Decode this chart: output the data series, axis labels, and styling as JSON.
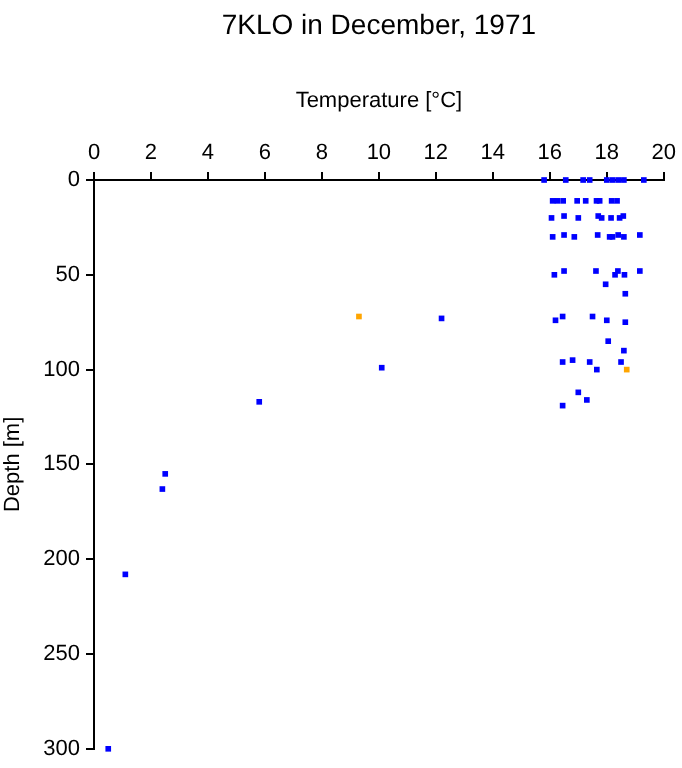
{
  "chart_data": {
    "type": "scatter",
    "title": "7KLO in December, 1971",
    "xlabel": "Temperature [°C]",
    "ylabel": "Depth [m]",
    "xlim": [
      0,
      20
    ],
    "xticks": [
      0,
      2,
      4,
      6,
      8,
      10,
      12,
      14,
      16,
      18,
      20
    ],
    "ylim": [
      300,
      0
    ],
    "yticks": [
      0,
      50,
      100,
      150,
      200,
      250,
      300
    ],
    "grid": false,
    "legend": false,
    "marker": "square",
    "series": [
      {
        "color": "#0000ff",
        "x": [
          0.5,
          1.1,
          2.4,
          2.5,
          5.8,
          10.1,
          12.2,
          16.2,
          16.45,
          17.5,
          18.0,
          18.65,
          18.05,
          18.6,
          18.5,
          16.45,
          16.8,
          17.4,
          17.65,
          17.0,
          17.3,
          16.45,
          15.8,
          16.56,
          17.17,
          17.4,
          18.0,
          18.2,
          18.4,
          18.6,
          19.3,
          16.1,
          16.27,
          16.47,
          16.96,
          17.26,
          17.64,
          17.75,
          18.17,
          18.36,
          16.06,
          16.5,
          17.0,
          17.7,
          17.82,
          18.15,
          18.45,
          18.58,
          16.1,
          16.5,
          16.86,
          17.68,
          18.1,
          18.2,
          18.4,
          18.6,
          19.16,
          16.16,
          16.5,
          17.62,
          18.29,
          18.39,
          18.62,
          19.16,
          17.96,
          18.65
        ],
        "values": [
          300,
          208,
          163,
          155,
          117,
          99,
          73,
          74,
          72,
          72,
          74,
          75,
          85,
          90,
          96,
          96,
          95,
          96,
          100,
          112,
          116,
          119,
          0,
          0,
          0,
          0,
          0,
          0,
          0,
          0,
          0,
          11,
          11,
          11,
          11,
          11,
          11,
          11,
          11,
          11,
          20,
          19,
          20,
          19,
          20,
          20,
          20,
          19,
          30,
          29,
          30,
          29,
          30,
          30,
          29,
          30,
          29,
          50,
          48,
          48,
          50,
          48,
          50,
          48,
          55,
          60
        ]
      },
      {
        "color": "#ffa500",
        "x": [
          9.3,
          18.7
        ],
        "values": [
          72,
          100
        ]
      }
    ]
  }
}
